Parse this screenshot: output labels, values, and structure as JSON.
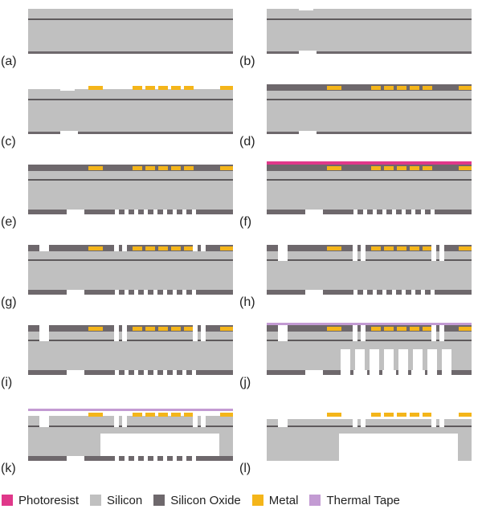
{
  "panels": [
    {
      "label": "(a)"
    },
    {
      "label": "(b)"
    },
    {
      "label": "(c)"
    },
    {
      "label": "(d)"
    },
    {
      "label": "(e)"
    },
    {
      "label": "(f)"
    },
    {
      "label": "(g)"
    },
    {
      "label": "(h)"
    },
    {
      "label": "(i)"
    },
    {
      "label": "(j)"
    },
    {
      "label": "(k)"
    },
    {
      "label": "(l)"
    }
  ],
  "legend": [
    {
      "label": "Photoresist",
      "color": "#E0388A"
    },
    {
      "label": "Silicon",
      "color": "#C0C0C0"
    },
    {
      "label": "Silicon Oxide",
      "color": "#6E686C"
    },
    {
      "label": "Metal",
      "color": "#F4B51A"
    },
    {
      "label": "Thermal Tape",
      "color": "#C39BD3"
    }
  ],
  "colors": {
    "photoresist": "#E0388A",
    "silicon": "#C0C0C0",
    "oxide": "#6E686C",
    "metal": "#F4B51A",
    "tape": "#C39BD3",
    "buried_oxide_line": "#5E5A5C"
  }
}
